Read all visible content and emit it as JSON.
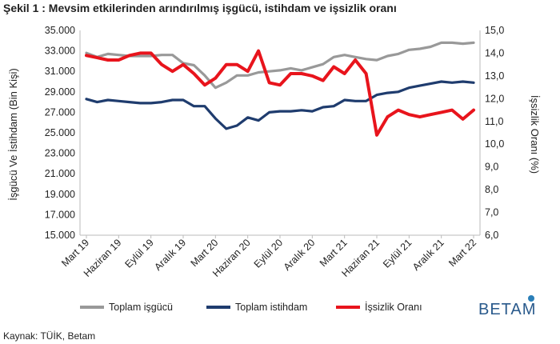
{
  "figure_title": "Şekil 1 : Mevsim etkilerinden arındırılmış işgücü, istihdam ve işsizlik oranı",
  "source": "Kaynak: TÜİK, Betam",
  "logo_text": "BETAM",
  "chart_data": {
    "type": "line",
    "title": "",
    "ylabel_left": "İşgücü Ve İstihdam (Bin Kişi)",
    "ylabel_right": "İşsizlik Oranı (%)",
    "ylim_left": [
      15000,
      35000
    ],
    "ylim_right": [
      6.0,
      15.0
    ],
    "yticks_left": [
      "15.000",
      "17.000",
      "19.000",
      "21.000",
      "23.000",
      "25.000",
      "27.000",
      "29.000",
      "31.000",
      "33.000",
      "35.000"
    ],
    "yticks_right": [
      "6,0",
      "7,0",
      "8,0",
      "9,0",
      "10,0",
      "11,0",
      "12,0",
      "13,0",
      "14,0",
      "15,0"
    ],
    "x": [
      "Mart 19",
      "Nisan 19",
      "Mayıs 19",
      "Haziran 19",
      "Temmuz 19",
      "Ağustos 19",
      "Eylül 19",
      "Ekim 19",
      "Kasım 19",
      "Aralık 19",
      "Ocak 20",
      "Şubat 20",
      "Mart 20",
      "Nisan 20",
      "Mayıs 20",
      "Haziran 20",
      "Temmuz 20",
      "Ağustos 20",
      "Eylül 20",
      "Ekim 20",
      "Kasım 20",
      "Aralık 20",
      "Ocak 21",
      "Şubat 21",
      "Mart 21",
      "Nisan 21",
      "Mayıs 21",
      "Haziran 21",
      "Temmuz 21",
      "Ağustos 21",
      "Eylül 21",
      "Ekim 21",
      "Kasım 21",
      "Aralık 21",
      "Ocak 22",
      "Şubat 22",
      "Mart 22"
    ],
    "xtick_labels": [
      "Mart 19",
      "Haziran 19",
      "Eylül 19",
      "Aralık 19",
      "Mart 20",
      "Haziran 20",
      "Eylül 20",
      "Aralık 20",
      "Mart 21",
      "Haziran 21",
      "Eylül 21",
      "Aralık 21",
      "Mart 22"
    ],
    "grid": false,
    "legend_position": "bottom",
    "series": [
      {
        "name": "Toplam işgücü",
        "axis": "left",
        "color": "#999999",
        "values": [
          32800,
          32400,
          32700,
          32600,
          32500,
          32500,
          32500,
          32600,
          32600,
          31800,
          31600,
          30600,
          29400,
          29900,
          30600,
          30600,
          30900,
          31000,
          31100,
          31300,
          31100,
          31400,
          31700,
          32400,
          32600,
          32400,
          32200,
          32100,
          32500,
          32700,
          33100,
          33200,
          33400,
          33800,
          33800,
          33700,
          33800
        ]
      },
      {
        "name": "Toplam istihdam",
        "axis": "left",
        "color": "#1f3c6e",
        "values": [
          28300,
          28000,
          28200,
          28100,
          28000,
          27900,
          27900,
          28000,
          28200,
          28200,
          27600,
          27600,
          26400,
          25400,
          25700,
          26500,
          26200,
          27000,
          27100,
          27100,
          27200,
          27100,
          27500,
          27600,
          28200,
          28100,
          28100,
          28700,
          28900,
          29000,
          29400,
          29600,
          29800,
          30000,
          29900,
          30000,
          29900
        ]
      },
      {
        "name": "İşsizlik Oranı",
        "axis": "right",
        "color": "#e8141c",
        "values": [
          13.9,
          13.8,
          13.7,
          13.7,
          13.9,
          14.0,
          14.0,
          13.5,
          13.2,
          13.5,
          13.1,
          12.6,
          12.9,
          13.5,
          13.5,
          13.2,
          14.1,
          12.7,
          12.6,
          13.1,
          13.1,
          13.0,
          12.8,
          13.4,
          13.1,
          13.7,
          13.1,
          10.4,
          11.2,
          11.5,
          11.3,
          11.2,
          11.3,
          11.4,
          11.5,
          11.1,
          11.5
        ]
      }
    ]
  }
}
